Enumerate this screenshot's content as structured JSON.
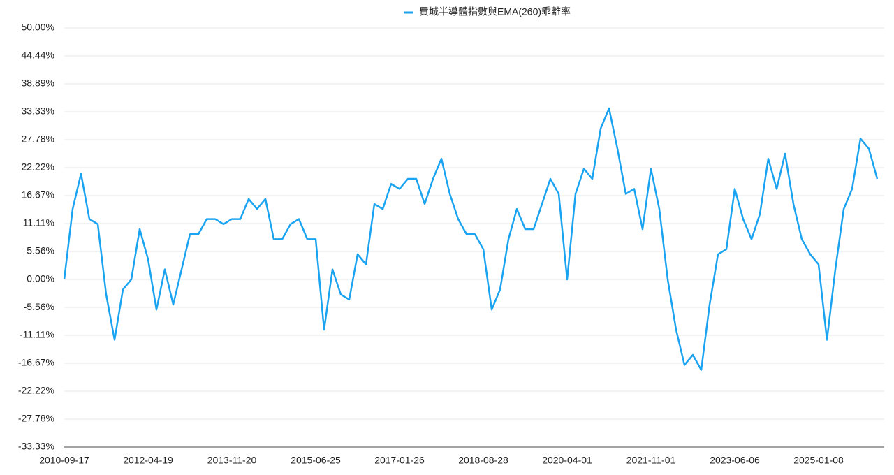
{
  "chart_data": {
    "type": "line",
    "categories": [
      "2010-09-17",
      null,
      null,
      null,
      null,
      null,
      null,
      null,
      null,
      null,
      "2012-04-19",
      null,
      null,
      null,
      null,
      null,
      null,
      null,
      null,
      null,
      "2013-11-20",
      null,
      null,
      null,
      null,
      null,
      null,
      null,
      null,
      null,
      "2015-06-25",
      null,
      null,
      null,
      null,
      null,
      null,
      null,
      null,
      null,
      "2017-01-26",
      null,
      null,
      null,
      null,
      null,
      null,
      null,
      null,
      null,
      "2018-08-28",
      null,
      null,
      null,
      null,
      null,
      null,
      null,
      null,
      null,
      "2020-04-01",
      null,
      null,
      null,
      null,
      null,
      null,
      null,
      null,
      null,
      "2021-11-01",
      null,
      null,
      null,
      null,
      null,
      null,
      null,
      null,
      null,
      "2023-06-06",
      null,
      null,
      null,
      null,
      null,
      null,
      null,
      null,
      null,
      "2025-01-08",
      null,
      null,
      null,
      null,
      null,
      null,
      null
    ],
    "series": [
      {
        "name": "費城半導體指數與EMA(260)乖離率",
        "color": "#1aa3f0",
        "values": [
          0,
          14,
          21,
          12,
          11,
          -3,
          -12,
          -2,
          0,
          10,
          4,
          -6,
          2,
          -5,
          2,
          9,
          9,
          12,
          12,
          11,
          12,
          12,
          16,
          14,
          16,
          8,
          8,
          11,
          12,
          8,
          8,
          -10,
          2,
          -3,
          -4,
          5,
          3,
          15,
          14,
          19,
          18,
          20,
          20,
          15,
          20,
          24,
          17,
          12,
          9,
          9,
          6,
          -6,
          -2,
          8,
          14,
          10,
          10,
          15,
          20,
          17,
          0,
          17,
          22,
          20,
          30,
          34,
          26,
          17,
          18,
          10,
          22,
          14,
          0,
          -10,
          -17,
          -15,
          -18,
          -5,
          5,
          6,
          18,
          12,
          8,
          13,
          24,
          18,
          25,
          15,
          8,
          5,
          3,
          -12,
          2,
          14,
          18,
          28,
          26,
          20
        ]
      }
    ],
    "ylim": [
      -33.33,
      50
    ],
    "yticks": [
      {
        "value": 50,
        "label": "50.00%"
      },
      {
        "value": 44.44,
        "label": "44.44%"
      },
      {
        "value": 38.89,
        "label": "38.89%"
      },
      {
        "value": 33.33,
        "label": "33.33%"
      },
      {
        "value": 27.78,
        "label": "27.78%"
      },
      {
        "value": 22.22,
        "label": "22.22%"
      },
      {
        "value": 16.67,
        "label": "16.67%"
      },
      {
        "value": 11.11,
        "label": "11.11%"
      },
      {
        "value": 5.56,
        "label": "5.56%"
      },
      {
        "value": 0,
        "label": "0.00%"
      },
      {
        "value": -5.56,
        "label": "-5.56%"
      },
      {
        "value": -11.11,
        "label": "-11.11%"
      },
      {
        "value": -16.67,
        "label": "-16.67%"
      },
      {
        "value": -22.22,
        "label": "-22.22%"
      },
      {
        "value": -27.78,
        "label": "-27.78%"
      },
      {
        "value": -33.33,
        "label": "-33.33%"
      }
    ],
    "grid": true,
    "legend": "top"
  }
}
